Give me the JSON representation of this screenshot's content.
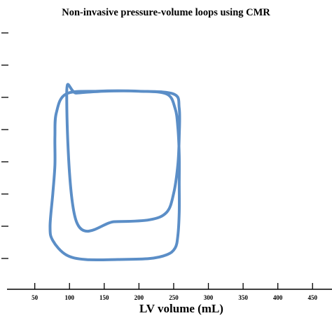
{
  "chart_data": {
    "type": "line",
    "title": "Non-invasive pressure-volume loops using CMR",
    "xlabel": "LV volume (mL)",
    "ylabel": "",
    "xlim": [
      10,
      478
    ],
    "x_ticks": [
      "50",
      "100",
      "150",
      "200",
      "250",
      "300",
      "350",
      "400",
      "450"
    ],
    "y_tick_count": 8,
    "grid": false,
    "legend": "none",
    "series": [
      {
        "color": "#5b8ec7",
        "x": [
          110,
          165,
          215,
          240,
          250,
          256,
          258,
          258,
          250,
          200,
          140,
          95,
          81,
          79,
          79,
          76,
          72,
          76,
          95,
          123,
          170,
          215,
          240,
          252,
          256,
          258,
          258,
          258,
          256,
          252,
          240,
          200,
          150,
          110,
          96
        ],
        "y": [
          50,
          50,
          52,
          60,
          80,
          110,
          140,
          170,
          185,
          188,
          188,
          185,
          165,
          140,
          110,
          80,
          45,
          30,
          15,
          10,
          10,
          11,
          15,
          22,
          35,
          60,
          90,
          120,
          150,
          170,
          185,
          188,
          188,
          186,
          185
        ]
      }
    ]
  }
}
